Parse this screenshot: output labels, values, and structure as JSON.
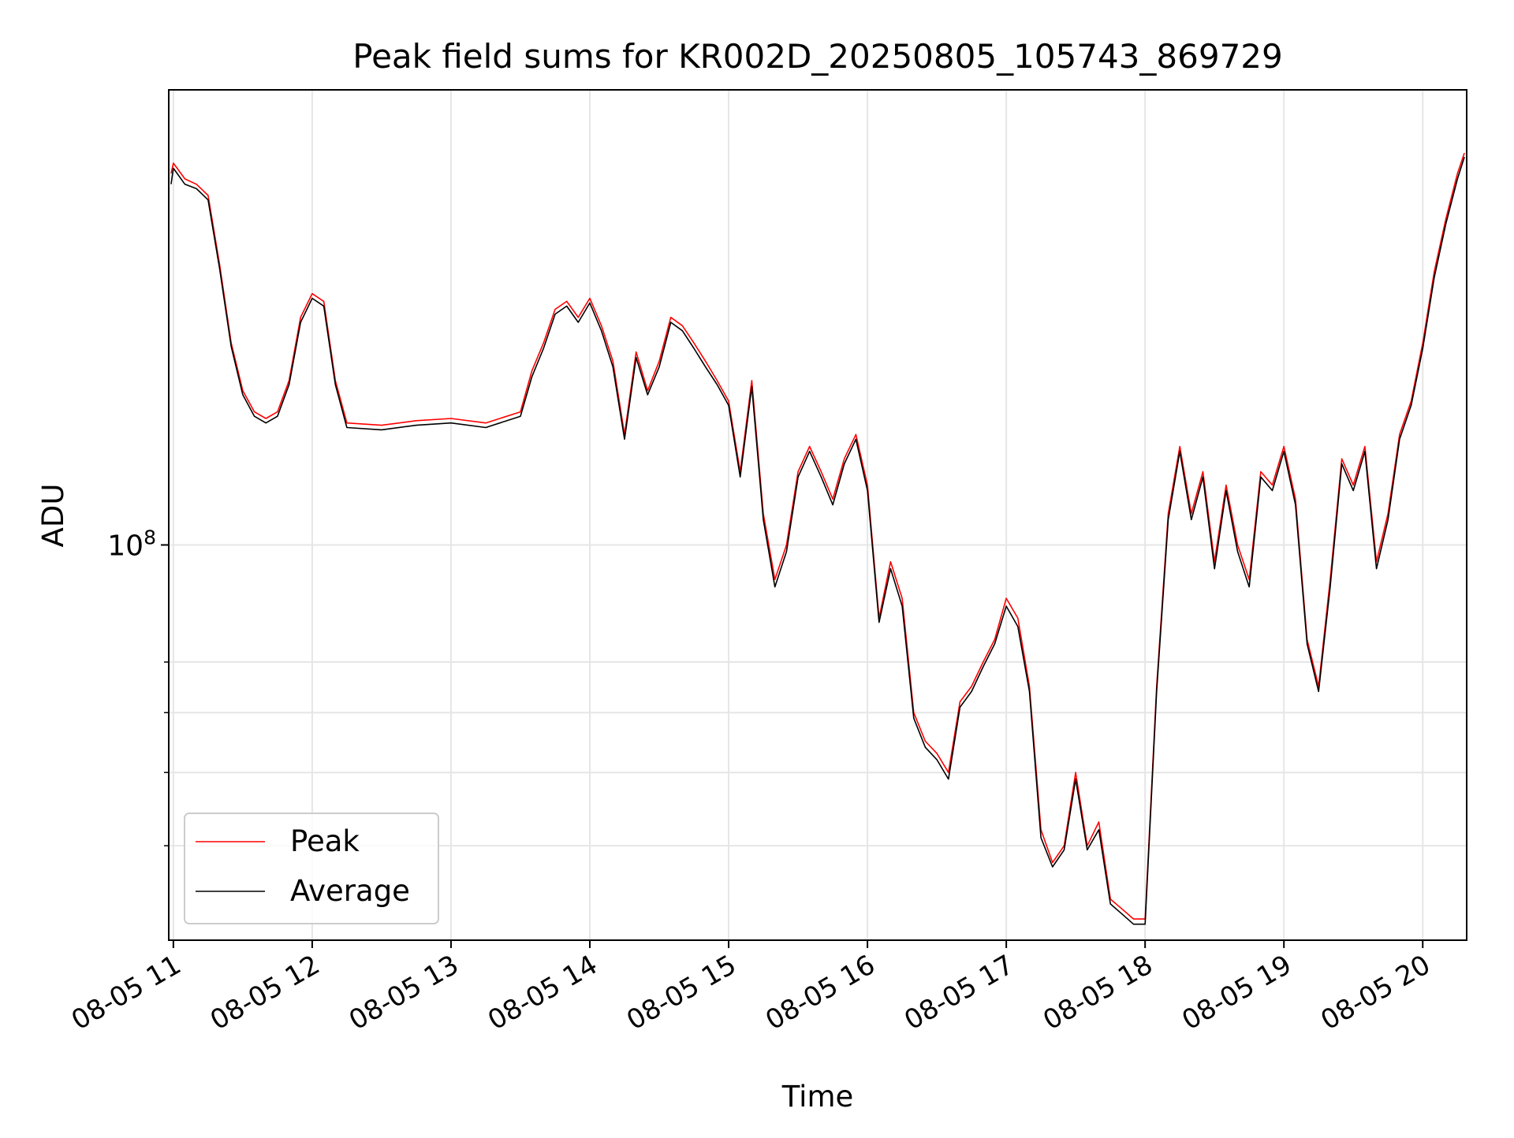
{
  "chart_data": {
    "type": "line",
    "title": "Peak field sums for KR002D_20250805_105743_869729",
    "xlabel": "Time",
    "ylabel": "ADU",
    "y_scale": "log",
    "y_major_tick_labels": [
      {
        "value": 100000000,
        "base": "10",
        "exponent": "8"
      }
    ],
    "y_minor_ticks": [
      40000000,
      50000000,
      60000000,
      70000000
    ],
    "ylim": [
      30000000,
      400000000
    ],
    "xlim": [
      "2025-08-05 10:58",
      "2025-08-05 20:19"
    ],
    "x_tick_labels": [
      "08-05 11",
      "08-05 12",
      "08-05 13",
      "08-05 14",
      "08-05 15",
      "08-05 16",
      "08-05 17",
      "08-05 18",
      "08-05 19",
      "08-05 20"
    ],
    "x_tick_values": [
      "2025-08-05 11:00",
      "2025-08-05 12:00",
      "2025-08-05 13:00",
      "2025-08-05 14:00",
      "2025-08-05 15:00",
      "2025-08-05 16:00",
      "2025-08-05 17:00",
      "2025-08-05 18:00",
      "2025-08-05 19:00",
      "2025-08-05 20:00"
    ],
    "grid": true,
    "legend": {
      "placement": "lower-left"
    },
    "series": [
      {
        "name": "Peak",
        "color": "#ff0000",
        "x": [
          "2025-08-05 10:59",
          "2025-08-05 11:00",
          "2025-08-05 11:05",
          "2025-08-05 11:10",
          "2025-08-05 11:15",
          "2025-08-05 11:20",
          "2025-08-05 11:25",
          "2025-08-05 11:30",
          "2025-08-05 11:35",
          "2025-08-05 11:40",
          "2025-08-05 11:45",
          "2025-08-05 11:50",
          "2025-08-05 11:55",
          "2025-08-05 12:00",
          "2025-08-05 12:05",
          "2025-08-05 12:10",
          "2025-08-05 12:15",
          "2025-08-05 12:30",
          "2025-08-05 12:45",
          "2025-08-05 13:00",
          "2025-08-05 13:15",
          "2025-08-05 13:30",
          "2025-08-05 13:35",
          "2025-08-05 13:40",
          "2025-08-05 13:45",
          "2025-08-05 13:50",
          "2025-08-05 13:55",
          "2025-08-05 14:00",
          "2025-08-05 14:05",
          "2025-08-05 14:10",
          "2025-08-05 14:15",
          "2025-08-05 14:20",
          "2025-08-05 14:25",
          "2025-08-05 14:30",
          "2025-08-05 14:35",
          "2025-08-05 14:40",
          "2025-08-05 14:45",
          "2025-08-05 14:50",
          "2025-08-05 14:55",
          "2025-08-05 15:00",
          "2025-08-05 15:05",
          "2025-08-05 15:10",
          "2025-08-05 15:15",
          "2025-08-05 15:20",
          "2025-08-05 15:25",
          "2025-08-05 15:30",
          "2025-08-05 15:35",
          "2025-08-05 15:40",
          "2025-08-05 15:45",
          "2025-08-05 15:50",
          "2025-08-05 15:55",
          "2025-08-05 16:00",
          "2025-08-05 16:05",
          "2025-08-05 16:10",
          "2025-08-05 16:15",
          "2025-08-05 16:20",
          "2025-08-05 16:25",
          "2025-08-05 16:30",
          "2025-08-05 16:35",
          "2025-08-05 16:40",
          "2025-08-05 16:45",
          "2025-08-05 16:50",
          "2025-08-05 16:55",
          "2025-08-05 17:00",
          "2025-08-05 17:05",
          "2025-08-05 17:10",
          "2025-08-05 17:15",
          "2025-08-05 17:20",
          "2025-08-05 17:25",
          "2025-08-05 17:30",
          "2025-08-05 17:35",
          "2025-08-05 17:40",
          "2025-08-05 17:45",
          "2025-08-05 17:50",
          "2025-08-05 17:55",
          "2025-08-05 18:00",
          "2025-08-05 18:05",
          "2025-08-05 18:10",
          "2025-08-05 18:15",
          "2025-08-05 18:20",
          "2025-08-05 18:25",
          "2025-08-05 18:30",
          "2025-08-05 18:35",
          "2025-08-05 18:40",
          "2025-08-05 18:45",
          "2025-08-05 18:50",
          "2025-08-05 18:55",
          "2025-08-05 19:00",
          "2025-08-05 19:05",
          "2025-08-05 19:10",
          "2025-08-05 19:15",
          "2025-08-05 19:20",
          "2025-08-05 19:25",
          "2025-08-05 19:30",
          "2025-08-05 19:35",
          "2025-08-05 19:40",
          "2025-08-05 19:45",
          "2025-08-05 19:50",
          "2025-08-05 19:55",
          "2025-08-05 20:00",
          "2025-08-05 20:05",
          "2025-08-05 20:10",
          "2025-08-05 20:15",
          "2025-08-05 20:18"
        ],
        "values": [
          310000000,
          320000000,
          305000000,
          300000000,
          290000000,
          235000000,
          185000000,
          160000000,
          150000000,
          147000000,
          150000000,
          165000000,
          200000000,
          215000000,
          210000000,
          165000000,
          145000000,
          144000000,
          146000000,
          147000000,
          145000000,
          150000000,
          170000000,
          185000000,
          205000000,
          210000000,
          200000000,
          212000000,
          195000000,
          175000000,
          140000000,
          180000000,
          160000000,
          175000000,
          200000000,
          195000000,
          185000000,
          175000000,
          165000000,
          155000000,
          125000000,
          165000000,
          110000000,
          90000000,
          100000000,
          125000000,
          135000000,
          125000000,
          115000000,
          130000000,
          140000000,
          120000000,
          80000000,
          95000000,
          85000000,
          60000000,
          55000000,
          53000000,
          50000000,
          62000000,
          65000000,
          70000000,
          75000000,
          85000000,
          80000000,
          65000000,
          42000000,
          38000000,
          40000000,
          50000000,
          40000000,
          43000000,
          34000000,
          33000000,
          32000000,
          32000000,
          65000000,
          110000000,
          135000000,
          110000000,
          125000000,
          95000000,
          120000000,
          100000000,
          90000000,
          125000000,
          120000000,
          135000000,
          115000000,
          75000000,
          65000000,
          90000000,
          130000000,
          120000000,
          135000000,
          95000000,
          110000000,
          140000000,
          155000000,
          185000000,
          230000000,
          270000000,
          310000000,
          330000000
        ]
      },
      {
        "name": "Average",
        "color": "#000000",
        "x": [
          "2025-08-05 10:59",
          "2025-08-05 11:00",
          "2025-08-05 11:05",
          "2025-08-05 11:10",
          "2025-08-05 11:15",
          "2025-08-05 11:20",
          "2025-08-05 11:25",
          "2025-08-05 11:30",
          "2025-08-05 11:35",
          "2025-08-05 11:40",
          "2025-08-05 11:45",
          "2025-08-05 11:50",
          "2025-08-05 11:55",
          "2025-08-05 12:00",
          "2025-08-05 12:05",
          "2025-08-05 12:10",
          "2025-08-05 12:15",
          "2025-08-05 12:30",
          "2025-08-05 12:45",
          "2025-08-05 13:00",
          "2025-08-05 13:15",
          "2025-08-05 13:30",
          "2025-08-05 13:35",
          "2025-08-05 13:40",
          "2025-08-05 13:45",
          "2025-08-05 13:50",
          "2025-08-05 13:55",
          "2025-08-05 14:00",
          "2025-08-05 14:05",
          "2025-08-05 14:10",
          "2025-08-05 14:15",
          "2025-08-05 14:20",
          "2025-08-05 14:25",
          "2025-08-05 14:30",
          "2025-08-05 14:35",
          "2025-08-05 14:40",
          "2025-08-05 14:45",
          "2025-08-05 14:50",
          "2025-08-05 14:55",
          "2025-08-05 15:00",
          "2025-08-05 15:05",
          "2025-08-05 15:10",
          "2025-08-05 15:15",
          "2025-08-05 15:20",
          "2025-08-05 15:25",
          "2025-08-05 15:30",
          "2025-08-05 15:35",
          "2025-08-05 15:40",
          "2025-08-05 15:45",
          "2025-08-05 15:50",
          "2025-08-05 15:55",
          "2025-08-05 16:00",
          "2025-08-05 16:05",
          "2025-08-05 16:10",
          "2025-08-05 16:15",
          "2025-08-05 16:20",
          "2025-08-05 16:25",
          "2025-08-05 16:30",
          "2025-08-05 16:35",
          "2025-08-05 16:40",
          "2025-08-05 16:45",
          "2025-08-05 16:50",
          "2025-08-05 16:55",
          "2025-08-05 17:00",
          "2025-08-05 17:05",
          "2025-08-05 17:10",
          "2025-08-05 17:15",
          "2025-08-05 17:20",
          "2025-08-05 17:25",
          "2025-08-05 17:30",
          "2025-08-05 17:35",
          "2025-08-05 17:40",
          "2025-08-05 17:45",
          "2025-08-05 17:50",
          "2025-08-05 17:55",
          "2025-08-05 18:00",
          "2025-08-05 18:05",
          "2025-08-05 18:10",
          "2025-08-05 18:15",
          "2025-08-05 18:20",
          "2025-08-05 18:25",
          "2025-08-05 18:30",
          "2025-08-05 18:35",
          "2025-08-05 18:40",
          "2025-08-05 18:45",
          "2025-08-05 18:50",
          "2025-08-05 18:55",
          "2025-08-05 19:00",
          "2025-08-05 19:05",
          "2025-08-05 19:10",
          "2025-08-05 19:15",
          "2025-08-05 19:20",
          "2025-08-05 19:25",
          "2025-08-05 19:30",
          "2025-08-05 19:35",
          "2025-08-05 19:40",
          "2025-08-05 19:45",
          "2025-08-05 19:50",
          "2025-08-05 19:55",
          "2025-08-05 20:00",
          "2025-08-05 20:05",
          "2025-08-05 20:10",
          "2025-08-05 20:15",
          "2025-08-05 20:18"
        ],
        "values": [
          300000000,
          315000000,
          300000000,
          296000000,
          286000000,
          232000000,
          183000000,
          158000000,
          148000000,
          145000000,
          148000000,
          163000000,
          197000000,
          212000000,
          207000000,
          163000000,
          143000000,
          142000000,
          144000000,
          145000000,
          143000000,
          148000000,
          167000000,
          182000000,
          202000000,
          207000000,
          197000000,
          209000000,
          192000000,
          172000000,
          138000000,
          177000000,
          158000000,
          172000000,
          197000000,
          192000000,
          182000000,
          172000000,
          163000000,
          153000000,
          123000000,
          162000000,
          108000000,
          88000000,
          98000000,
          123000000,
          133000000,
          123000000,
          113000000,
          128000000,
          138000000,
          118000000,
          79000000,
          93000000,
          83000000,
          59000000,
          54000000,
          52000000,
          49000000,
          61000000,
          64000000,
          69000000,
          74000000,
          83000000,
          78000000,
          64000000,
          41000000,
          37500000,
          39500000,
          49000000,
          39500000,
          42000000,
          33500000,
          32500000,
          31500000,
          31500000,
          64000000,
          108000000,
          133000000,
          108000000,
          123000000,
          93000000,
          118000000,
          98000000,
          88000000,
          123000000,
          118000000,
          133000000,
          113000000,
          74000000,
          64000000,
          88000000,
          128000000,
          118000000,
          133000000,
          93000000,
          108000000,
          138000000,
          153000000,
          182000000,
          226000000,
          266000000,
          305000000,
          326000000
        ]
      }
    ]
  }
}
